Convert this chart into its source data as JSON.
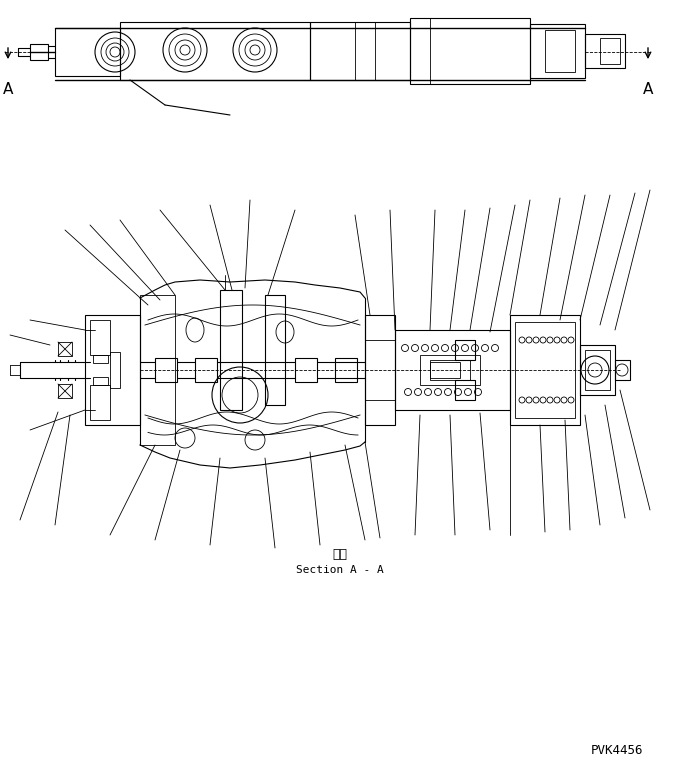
{
  "background_color": "#ffffff",
  "line_color": "#000000",
  "section_label_jp": "断面",
  "section_label_en": "Section A - A",
  "part_number": "PVK4456",
  "figsize": [
    6.8,
    7.69
  ],
  "dpi": 100
}
